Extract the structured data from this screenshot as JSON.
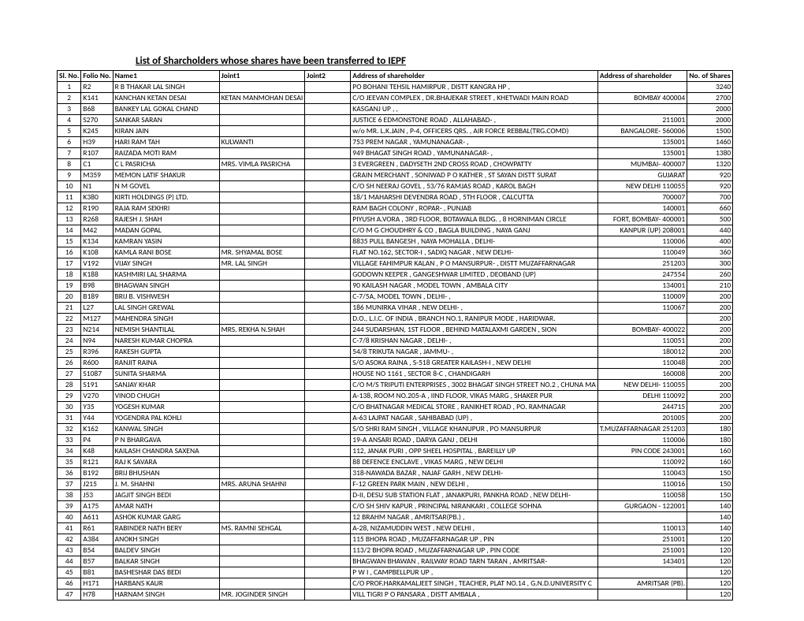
{
  "title": "List of Sharcholders whose shares have been transferred to IEPF",
  "headers": {
    "sl": "Sl. No.",
    "folio": "Folio No.",
    "name1": "Name1",
    "joint1": "Joint1",
    "joint2": "Joint2",
    "addr": "Address of shareholder",
    "addr2": "Address of shareholder",
    "shares": "No. of Shares"
  },
  "rows": [
    {
      "sl": "1",
      "folio": "R2",
      "name": "R B THAKAR LAL SINGH",
      "j1": "",
      "j2": "",
      "addr": "PO BOHANI TEHSIL HAMIRPUR , DISTT KANGRA HP ,",
      "addr2": "",
      "shares": "3240"
    },
    {
      "sl": "2",
      "folio": "K141",
      "name": "KANCHAN KETAN DESAI",
      "j1": "KETAN MANMOHAN DESAI",
      "j2": "",
      "addr": "C/O JEEVAN COMPLEX , DR.BHAJEKAR STREET , KHETWADI MAIN ROAD",
      "addr2": "BOMBAY 400004",
      "shares": "2700"
    },
    {
      "sl": "3",
      "folio": "B68",
      "name": "BANKEY LAL GOKAL CHAND",
      "j1": "",
      "j2": "",
      "addr": "KASGANJ UP ,  ,",
      "addr2": "",
      "shares": "2000"
    },
    {
      "sl": "4",
      "folio": "S270",
      "name": "SANKAR SARAN",
      "j1": "",
      "j2": "",
      "addr": "JUSTICE 6 EDMONSTONE ROAD , ALLAHABAD- ,",
      "addr2": "211001",
      "shares": "2000"
    },
    {
      "sl": "5",
      "folio": "K245",
      "name": "KIRAN JAIN",
      "j1": "",
      "j2": "",
      "addr": "w/o MR. L.K.JAIN , P-4, OFFICERS QRS. , AIR FORCE REBBAL(TRG.COMD)",
      "addr2": "BANGALORE- 560006",
      "shares": "1500"
    },
    {
      "sl": "6",
      "folio": "H39",
      "name": "HARI RAM TAH",
      "j1": "KULWANTI",
      "j2": "",
      "addr": "753 PREM NAGAR , YAMUNANAGAR- ,",
      "addr2": "135001",
      "shares": "1460"
    },
    {
      "sl": "7",
      "folio": "R107",
      "name": "RAIZADA MOTI RAM",
      "j1": "",
      "j2": "",
      "addr": "949 BHAGAT SINGH ROAD , YAMUNANAGAR- ,",
      "addr2": "135001",
      "shares": "1380"
    },
    {
      "sl": "8",
      "folio": "C1",
      "name": "C L PASRICHA",
      "j1": "MRS. VIMLA PASRICHA",
      "j2": "",
      "addr": "3 EVERGREEN , DADYSETH 2ND CROSS ROAD , CHOWPATTY",
      "addr2": "MUMBAI- 400007",
      "shares": "1320"
    },
    {
      "sl": "9",
      "folio": "M359",
      "name": "MEMON LATIF SHAKUR",
      "j1": "",
      "j2": "",
      "addr": "GRAIN MERCHANT , SONIWAD P O KATHER , ST SAYAN DISTT SURAT",
      "addr2": "GUJARAT",
      "shares": "920"
    },
    {
      "sl": "10",
      "folio": "N1",
      "name": "N M GOVEL",
      "j1": "",
      "j2": "",
      "addr": "C/O SH NEERAJ GOVEL , 53/76 RAMJAS ROAD , KAROL BAGH",
      "addr2": "NEW DELHI 110055",
      "shares": "920"
    },
    {
      "sl": "11",
      "folio": "K380",
      "name": "KIRTI HOLDINGS (P) LTD.",
      "j1": "",
      "j2": "",
      "addr": "18/1 MAHARSHI DEVENDRA ROAD , 5TH FLOOR , CALCUTTA",
      "addr2": "700007",
      "shares": "700"
    },
    {
      "sl": "12",
      "folio": "R190",
      "name": "RAJA RAM SEKHRI",
      "j1": "",
      "j2": "",
      "addr": "RAM BAGH COLONY , ROPAR- , PUNJAB",
      "addr2": "140001",
      "shares": "660"
    },
    {
      "sl": "13",
      "folio": "R268",
      "name": "RAJESH J. SHAH",
      "j1": "",
      "j2": "",
      "addr": "PIYUSH A.VORA , 3RD FLOOR, BOTAWALA BLDG. , 8  HORNIMAN CIRCLE",
      "addr2": "FORT, BOMBAY- 400001",
      "shares": "500"
    },
    {
      "sl": "14",
      "folio": "M42",
      "name": "MADAN GOPAL",
      "j1": "",
      "j2": "",
      "addr": "C/O M G CHOUDHRY & CO , BAGLA BUILDING , NAYA GANJ",
      "addr2": "KANPUR (UP) 208001",
      "shares": "440"
    },
    {
      "sl": "15",
      "folio": "K134",
      "name": "KAMRAN YASIN",
      "j1": "",
      "j2": "",
      "addr": "8835 PULL BANGESH , NAYA MOHALLA , DELHI-",
      "addr2": "110006",
      "shares": "400"
    },
    {
      "sl": "16",
      "folio": "K108",
      "name": "KAMLA RANI BOSE",
      "j1": "MR. SHYAMAL BOSE",
      "j2": "",
      "addr": "FLAT NO.162, SECTOR-I , SADIQ NAGAR , NEW DELHI-",
      "addr2": "110049",
      "shares": "360"
    },
    {
      "sl": "17",
      "folio": "V192",
      "name": "VIJAY SINGH",
      "j1": "MR. LAL SINGH",
      "j2": "",
      "addr": "VILLAGE FAHIMPUR KALAN , P O MANSURPUR- , DISTT MUZAFFARNAGAR",
      "addr2": "251203",
      "shares": "300"
    },
    {
      "sl": "18",
      "folio": "K188",
      "name": "KASHMIRI LAL SHARMA",
      "j1": "",
      "j2": "",
      "addr": "GODOWN KEEPER , GANGESHWAR LIMITED , DEOBAND (UP)",
      "addr2": "247554",
      "shares": "260"
    },
    {
      "sl": "19",
      "folio": "B98",
      "name": "BHAGWAN SINGH",
      "j1": "",
      "j2": "",
      "addr": "90 KAILASH NAGAR , MODEL TOWN , AMBALA CITY",
      "addr2": "134001",
      "shares": "210"
    },
    {
      "sl": "20",
      "folio": "B189",
      "name": "BRIJ B. VISHWESH",
      "j1": "",
      "j2": "",
      "addr": "C-7/5A, MODEL TOWN , DELHI- ,",
      "addr2": "110009",
      "shares": "200"
    },
    {
      "sl": "21",
      "folio": "L27",
      "name": "LAL SINGH GREWAL",
      "j1": "",
      "j2": "",
      "addr": "186 MUNIRKA VIHAR , NEW DELHI- ,",
      "addr2": "110067",
      "shares": "200"
    },
    {
      "sl": "22",
      "folio": "M127",
      "name": "MAHENDRA SINGH",
      "j1": "",
      "j2": "",
      "addr": "D.O., L.I.C. OF INDIA , BRANCH NO.1, RANIPUR MODE , HARIDWAR.",
      "addr2": "",
      "shares": "200"
    },
    {
      "sl": "23",
      "folio": "N214",
      "name": "NEMISH SHANTILAL",
      "j1": "MRS. REKHA N.SHAH",
      "j2": "",
      "addr": "244 SUDARSHAN, 1ST FLOOR , BEHIND MATALAXMI GARDEN , SION",
      "addr2": "BOMBAY- 400022",
      "shares": "200"
    },
    {
      "sl": "24",
      "folio": "N94",
      "name": "NARESH KUMAR CHOPRA",
      "j1": "",
      "j2": "",
      "addr": "C-7/8 KRISHAN NAGAR , DELHI- ,",
      "addr2": "110051",
      "shares": "200"
    },
    {
      "sl": "25",
      "folio": "R396",
      "name": "RAKESH GUPTA",
      "j1": "",
      "j2": "",
      "addr": "54/8 TRIKUTA NAGAR , JAMMU- ,",
      "addr2": "180012",
      "shares": "200"
    },
    {
      "sl": "26",
      "folio": "R600",
      "name": "RANJIT RAINA",
      "j1": "",
      "j2": "",
      "addr": "S/O ASOKA RAINA , S-518 GREATER KAILASH-I , NEW DELHI",
      "addr2": "110048",
      "shares": "200"
    },
    {
      "sl": "27",
      "folio": "S1087",
      "name": "SUNITA SHARMA",
      "j1": "",
      "j2": "",
      "addr": "HOUSE NO 1161 , SECTOR 8-C , CHANDIGARH",
      "addr2": "160008",
      "shares": "200"
    },
    {
      "sl": "28",
      "folio": "S191",
      "name": "SANJAY KHAR",
      "j1": "",
      "j2": "",
      "addr": "C/O M/S TRIPUTI ENTERPRISES , 3002 BHAGAT SINGH STREET NO.2 , CHUNA MA",
      "addr2": "NEW DELHI- 110055",
      "shares": "200"
    },
    {
      "sl": "29",
      "folio": "V270",
      "name": "VINOD CHUGH",
      "j1": "",
      "j2": "",
      "addr": "A-138, ROOM NO.205-A , IIND FLOOR, VIKAS MARG , SHAKER PUR",
      "addr2": "DELHI 110092",
      "shares": "200"
    },
    {
      "sl": "30",
      "folio": "Y35",
      "name": "YOGESH KUMAR",
      "j1": "",
      "j2": "",
      "addr": "C/O BHATNAGAR MEDICAL STORE , RANIKHET ROAD , PO. RAMNAGAR",
      "addr2": "244715",
      "shares": "200"
    },
    {
      "sl": "31",
      "folio": "Y44",
      "name": "YOGENDRA PAL KOHLI",
      "j1": "",
      "j2": "",
      "addr": "A-63 LAJPAT NAGAR , SAHIBABAD (UP) ,",
      "addr2": "201005",
      "shares": "200"
    },
    {
      "sl": "32",
      "folio": "K162",
      "name": "KANWAL SINGH",
      "j1": "",
      "j2": "",
      "addr": "S/O SHRI RAM SINGH , VILLAGE KHANUPUR , PO MANSURPUR",
      "addr2": "T.MUZAFFARNAGAR 251203",
      "shares": "180"
    },
    {
      "sl": "33",
      "folio": "P4",
      "name": "P N BHARGAVA",
      "j1": "",
      "j2": "",
      "addr": "19-A ANSARI ROAD , DARYA GANJ , DELHI",
      "addr2": "110006",
      "shares": "180"
    },
    {
      "sl": "34",
      "folio": "K48",
      "name": "KAILASH CHANDRA SAXENA",
      "j1": "",
      "j2": "",
      "addr": "112, JANAK PURI , OPP SHEEL HOSPITAL , BAREILLY  UP",
      "addr2": "PIN CODE 243001",
      "shares": "160"
    },
    {
      "sl": "35",
      "folio": "R121",
      "name": "RAJ K SAVARA",
      "j1": "",
      "j2": "",
      "addr": "88 DEFENCE ENCLAVE , VIKAS MARG , NEW DELHI",
      "addr2": "110092",
      "shares": "160"
    },
    {
      "sl": "36",
      "folio": "B192",
      "name": "BRIJ BHUSHAN",
      "j1": "",
      "j2": "",
      "addr": "318-NAWADA BAZAR , NAJAF GARH , NEW DELHI-",
      "addr2": "110043",
      "shares": "150"
    },
    {
      "sl": "37",
      "folio": "J215",
      "name": "J. M. SHAHNI",
      "j1": "MRS. ARUNA SHAHNI",
      "j2": "",
      "addr": "F-12 GREEN PARK MAIN , NEW DELHI ,",
      "addr2": "110016",
      "shares": "150"
    },
    {
      "sl": "38",
      "folio": "J53",
      "name": "JAGJIT SINGH BEDI",
      "j1": "",
      "j2": "",
      "addr": "D-II, DESU SUB STATION FLAT , JANAKPURI, PANKHA ROAD , NEW DELHI-",
      "addr2": "110058",
      "shares": "150"
    },
    {
      "sl": "39",
      "folio": "A175",
      "name": "AMAR NATH",
      "j1": "",
      "j2": "",
      "addr": "C/O SH SHIV KAPUR , PRINCIPAL NIRANKARI , COLLEGE SOHNA",
      "addr2": "GURGAON - 122001",
      "shares": "140"
    },
    {
      "sl": "40",
      "folio": "A611",
      "name": "ASHOK KUMAR GARG",
      "j1": "",
      "j2": "",
      "addr": "12 BRAHM NAGAR , AMRITSAR(PB.) ,",
      "addr2": "",
      "shares": "140"
    },
    {
      "sl": "41",
      "folio": "R61",
      "name": "RABINDER NATH BERY",
      "j1": "MS. RAMNI SEHGAL",
      "j2": "",
      "addr": "A-28, NIZAMUDDIN WEST , NEW DELHI ,",
      "addr2": "110013",
      "shares": "140"
    },
    {
      "sl": "42",
      "folio": "A384",
      "name": "ANOKH SINGH",
      "j1": "",
      "j2": "",
      "addr": "115 BHOPA ROAD , MUZAFFARNAGAR UP , PIN",
      "addr2": "251001",
      "shares": "120"
    },
    {
      "sl": "43",
      "folio": "B54",
      "name": "BALDEV SINGH",
      "j1": "",
      "j2": "",
      "addr": "113/2 BHOPA ROAD , MUZAFFARNAGAR UP , PIN CODE",
      "addr2": "251001",
      "shares": "120"
    },
    {
      "sl": "44",
      "folio": "B57",
      "name": "BALKAR SINGH",
      "j1": "",
      "j2": "",
      "addr": "BHAGWAN BHAWAN , RAILWAY ROAD TARN TARAN , AMRITSAR-",
      "addr2": "143401",
      "shares": "120"
    },
    {
      "sl": "45",
      "folio": "B81",
      "name": "BASHESHAR DAS BEDI",
      "j1": "",
      "j2": "",
      "addr": "P W I , CAMPBELLPUR UP ,",
      "addr2": "",
      "shares": "120"
    },
    {
      "sl": "46",
      "folio": "H171",
      "name": "HARBANS KAUR",
      "j1": "",
      "j2": "",
      "addr": "C/O PROF.HARKAMALJEET SINGH , TEACHER, PLAT NO.14 , G.N.D.UNIVERSITY C",
      "addr2": "AMRITSAR (PB).",
      "shares": "120"
    },
    {
      "sl": "47",
      "folio": "H78",
      "name": "HARNAM SINGH",
      "j1": "MR. JOGINDER SINGH",
      "j2": "",
      "addr": "VILL TIGRI P O PANSARA , DISTT AMBALA ,",
      "addr2": "",
      "shares": "120"
    }
  ]
}
